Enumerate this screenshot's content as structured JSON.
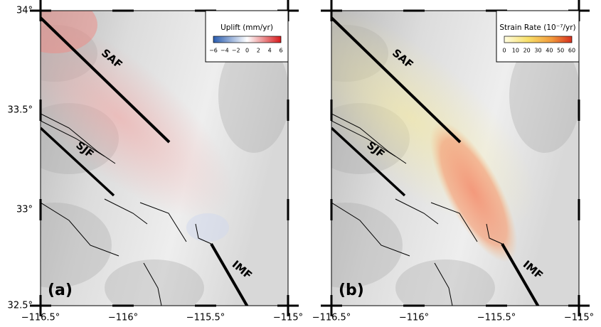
{
  "y_ticks": [
    "34°",
    "33.5°",
    "33°",
    "32.5°"
  ],
  "panels": [
    {
      "label": "(a)",
      "x_ticks": [
        "−116.5°",
        "−116°",
        "−115.5°",
        "−115°"
      ],
      "faults": [
        "SAF",
        "SJF",
        "IMF"
      ],
      "colorbar": {
        "title": "Uplift (mm/yr)",
        "ticks": [
          "−6",
          "−4",
          "−2",
          "0",
          "2",
          "4",
          "6"
        ]
      }
    },
    {
      "label": "(b)",
      "x_ticks": [
        "−116.5°",
        "−116°",
        "−115.5°",
        "−115°"
      ],
      "faults": [
        "SAF",
        "SJF",
        "IMF"
      ],
      "colorbar": {
        "title": "Strain Rate (10⁻⁷/yr)",
        "ticks": [
          "0",
          "10",
          "20",
          "30",
          "40",
          "50",
          "60"
        ]
      }
    }
  ]
}
